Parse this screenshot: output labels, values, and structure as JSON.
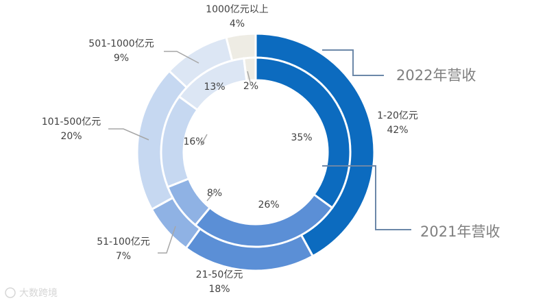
{
  "chart_data": {
    "type": "donut",
    "categories": [
      "1-20亿元",
      "21-50亿元",
      "51-100亿元",
      "101-500亿元",
      "501-1000亿元",
      "1000亿元以上"
    ],
    "series": [
      {
        "name": "2022年营收",
        "ring": "outer",
        "values": [
          42,
          18,
          7,
          20,
          9,
          4
        ],
        "labels": [
          "42%",
          "18%",
          "7%",
          "20%",
          "9%",
          "4%"
        ]
      },
      {
        "name": "2021年营收",
        "ring": "inner",
        "values": [
          35,
          26,
          8,
          16,
          13,
          2
        ],
        "labels": [
          "35%",
          "26%",
          "8%",
          "16%",
          "13%",
          "2%"
        ]
      }
    ],
    "colors": [
      "#0c6bbf",
      "#5b8fd6",
      "#8fb2e4",
      "#c6d8f1",
      "#dce6f4",
      "#eeece4"
    ]
  },
  "watermark": "大数跨境"
}
